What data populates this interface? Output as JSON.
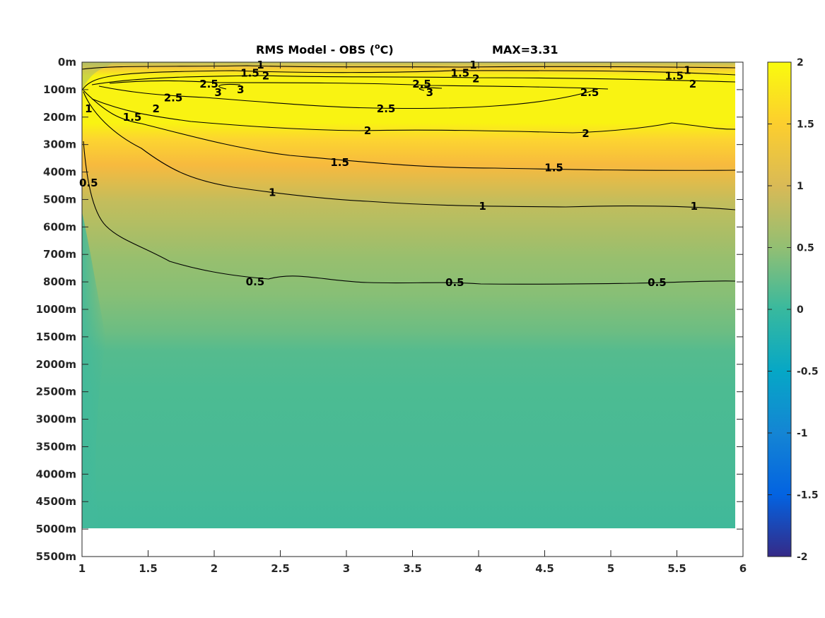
{
  "chart_data": {
    "type": "heatmap",
    "subtype": "filled-contour",
    "title": "RMS Model - OBS (°C)",
    "title_main": "RMS Model - OBS (",
    "title_unit_sup": "o",
    "title_unit_end": "C)",
    "max_annotation": "MAX=3.31",
    "x_ticks": [
      "1",
      "1.5",
      "2",
      "2.5",
      "3",
      "3.5",
      "4",
      "4.5",
      "5",
      "5.5",
      "6"
    ],
    "x_range": [
      1,
      6
    ],
    "y_ticks": [
      "0m",
      "100m",
      "200m",
      "300m",
      "400m",
      "500m",
      "600m",
      "700m",
      "800m",
      "1000m",
      "1500m",
      "2000m",
      "2500m",
      "3000m",
      "3500m",
      "4000m",
      "4500m",
      "5000m",
      "5500m"
    ],
    "y_direction": "reversed",
    "data_extent": {
      "x": [
        1,
        5.95
      ],
      "y_last_level": "5000m"
    },
    "colormap": "parula",
    "colorbar": {
      "ticks": [
        "2",
        "1.5",
        "1",
        "0.5",
        "0",
        "-0.5",
        "-1",
        "-1.5",
        "-2"
      ],
      "range": [
        -2,
        2
      ],
      "colors": [
        "#352a87",
        "#0363e1",
        "#1485d4",
        "#06a7c6",
        "#38b99e",
        "#92bf73",
        "#d9ba56",
        "#fcce2e",
        "#f9fb0e"
      ]
    },
    "contour_levels": [
      0.5,
      1,
      1.5,
      2,
      2.5,
      3
    ],
    "contour_labels": [
      {
        "text": "1",
        "x": 2.35,
        "level": "10m"
      },
      {
        "text": "1.5",
        "x": 2.27,
        "level": "40m"
      },
      {
        "text": "2",
        "x": 2.39,
        "level": "50m"
      },
      {
        "text": "2.5",
        "x": 1.96,
        "level": "80m"
      },
      {
        "text": "3",
        "x": 2.03,
        "level": "110m"
      },
      {
        "text": "3",
        "x": 2.2,
        "level": "100m"
      },
      {
        "text": "2.5",
        "x": 1.69,
        "level": "130m"
      },
      {
        "text": "2",
        "x": 1.56,
        "level": "170m"
      },
      {
        "text": "1.5",
        "x": 1.38,
        "level": "200m"
      },
      {
        "text": "1",
        "x": 1.05,
        "level": "170m"
      },
      {
        "text": "0.5",
        "x": 1.05,
        "level": "440m"
      },
      {
        "text": "2.5",
        "x": 3.57,
        "level": "80m"
      },
      {
        "text": "3",
        "x": 3.63,
        "level": "110m"
      },
      {
        "text": "2.5",
        "x": 3.3,
        "level": "170m"
      },
      {
        "text": "1.5",
        "x": 3.86,
        "level": "40m"
      },
      {
        "text": "1",
        "x": 3.96,
        "level": "10m"
      },
      {
        "text": "2",
        "x": 3.98,
        "level": "60m"
      },
      {
        "text": "2.5",
        "x": 4.84,
        "level": "110m"
      },
      {
        "text": "1.5",
        "x": 5.48,
        "level": "50m"
      },
      {
        "text": "1",
        "x": 5.58,
        "level": "30m"
      },
      {
        "text": "2",
        "x": 5.62,
        "level": "80m"
      },
      {
        "text": "2",
        "x": 3.16,
        "level": "250m"
      },
      {
        "text": "2",
        "x": 4.81,
        "level": "260m"
      },
      {
        "text": "1.5",
        "x": 2.95,
        "level": "365m"
      },
      {
        "text": "1.5",
        "x": 4.57,
        "level": "385m"
      },
      {
        "text": "1",
        "x": 2.44,
        "level": "475m"
      },
      {
        "text": "1",
        "x": 4.03,
        "level": "525m"
      },
      {
        "text": "1",
        "x": 5.63,
        "level": "525m"
      },
      {
        "text": "0.5",
        "x": 2.31,
        "level": "800m"
      },
      {
        "text": "0.5",
        "x": 3.82,
        "level": "805m"
      },
      {
        "text": "0.5",
        "x": 5.35,
        "level": "805m"
      }
    ]
  }
}
